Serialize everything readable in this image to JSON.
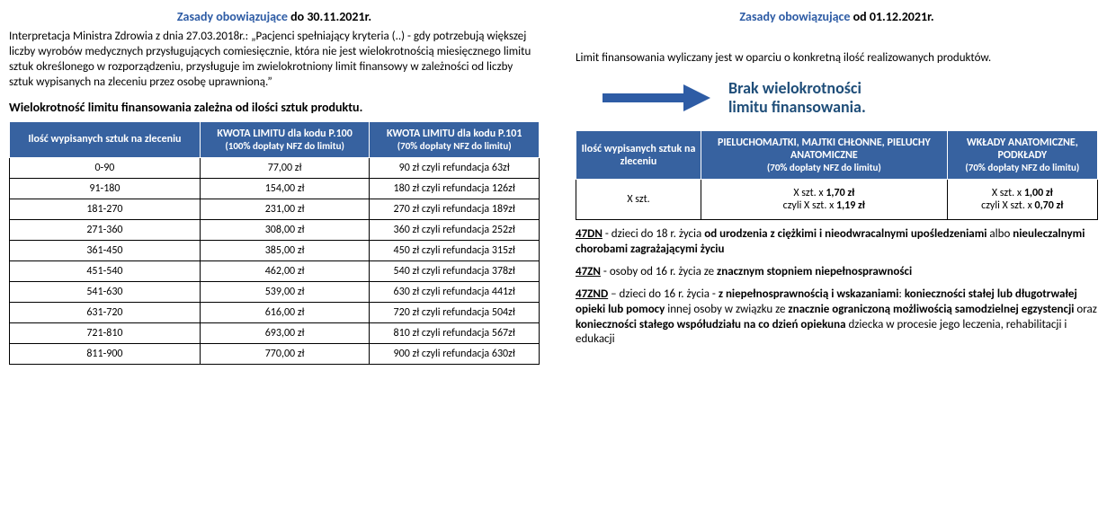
{
  "left": {
    "title_prefix": "Zasady obowiązujące",
    "title_suffix": " do 30.11.2021r.",
    "intro": "Interpretacja Ministra Zdrowia z dnia 27.03.2018r.: „Pacjenci spełniający kryteria (..) - gdy potrzebują większej liczby wyrobów medycznych przysługujących comiesięcznie, która nie jest wielokrotnością miesięcznego limitu sztuk określonego w rozporządzeniu, przysługuje im zwielokrotniony limit finansowy w zależności od liczby sztuk wypisanych na zleceniu przez osobę uprawnioną.”",
    "subhead": "Wielokrotność limitu finansowania zależna od ilości sztuk produktu.",
    "headers": {
      "c1": "Ilość wypisanych sztuk na zleceniu",
      "c2_l1": "KWOTA LIMITU dla kodu P.100",
      "c2_l2": "(100% dopłaty NFZ do limitu)",
      "c3_l1": "KWOTA LIMITU dla kodu P.101",
      "c3_l2": "(70% dopłaty NFZ do limitu)"
    },
    "rows": [
      {
        "r": "0-90",
        "a": "77,00 zł",
        "b": "90 zł czyli refundacja 63zł"
      },
      {
        "r": "91-180",
        "a": "154,00 zł",
        "b": "180 zł czyli refundacja 126zł"
      },
      {
        "r": "181-270",
        "a": "231,00 zł",
        "b": "270 zł czyli refundacja 189zł"
      },
      {
        "r": "271-360",
        "a": "308,00 zł",
        "b": "360 zł czyli refundacja 252zł"
      },
      {
        "r": "361-450",
        "a": "385,00 zł",
        "b": "450 zł czyli refundacja 315zł"
      },
      {
        "r": "451-540",
        "a": "462,00 zł",
        "b": "540 zł czyli refundacja 378zł"
      },
      {
        "r": "541-630",
        "a": "539,00 zł",
        "b": "630 zł czyli refundacja 441zł"
      },
      {
        "r": "631-720",
        "a": "616,00 zł",
        "b": "720 zł czyli refundacja 504zł"
      },
      {
        "r": "721-810",
        "a": "693,00 zł",
        "b": "810 zł czyli refundacja 567zł"
      },
      {
        "r": "811-900",
        "a": "770,00 zł",
        "b": "900 zł czyli refundacja 630zł"
      }
    ]
  },
  "right": {
    "title_prefix": "Zasady obowiązujące",
    "title_suffix": " od 01.12.2021r.",
    "intro": "Limit finansowania wyliczany jest w oparciu o konkretną ilość realizowanych produktów.",
    "slogan_l1": "Brak wielokrotności",
    "slogan_l2": "limitu finansowania.",
    "arrow_color": "#2e5ca5",
    "headers": {
      "c1": "Ilość wypisanych sztuk na zleceniu",
      "c2_l1": "PIELUCHOMAJTKI, MAJTKI CHŁONNE, PIELUCHY ANATOMICZNE",
      "c2_l2": "(70% dopłaty NFZ do limitu)",
      "c3_l1": "WKŁADY ANATOMICZNE, PODKŁADY",
      "c3_l2": "(70% dopłaty NFZ do limitu)"
    },
    "row": {
      "c1": "X szt.",
      "c2_l1a": "X szt. x ",
      "c2_l1b": "1,70 zł",
      "c2_l2a": "czyli X szt. x ",
      "c2_l2b": "1,19 zł",
      "c3_l1a": "X szt. x ",
      "c3_l1b": "1,00 zł",
      "c3_l2a": "czyli X szt. x ",
      "c3_l2b": "0,70 zł"
    },
    "notes": {
      "n1_code": "47DN",
      "n1_a": " - dzieci do 18 r. życia ",
      "n1_b": "od urodzenia z ciężkimi i nieodwracalnymi  upośledzeniami",
      "n1_c": " albo ",
      "n1_d": "nieuleczalnymi chorobami zagrażającymi życiu",
      "n2_code": "47ZN",
      "n2_a": " - osoby od 16 r. życia ze ",
      "n2_b": "znacznym stopniem niepełnosprawności",
      "n3_code": "47ZND",
      "n3_a": " – dzieci do 16 r. życia -  ",
      "n3_b": "z niepełnosprawnością i wskazaniami",
      "n3_c": ": ",
      "n3_d": "konieczności stałej lub długotrwałej opieki lub pomocy",
      "n3_e": " innej osoby w związku ze ",
      "n3_f": "znacznie ograniczoną możliwością samodzielnej egzystencji",
      "n3_g": " oraz ",
      "n3_h": "konieczności stałego współudziału na co dzień opiekuna",
      "n3_i": " dziecka w procesie jego leczenia, rehabilitacji i edukacji"
    }
  }
}
